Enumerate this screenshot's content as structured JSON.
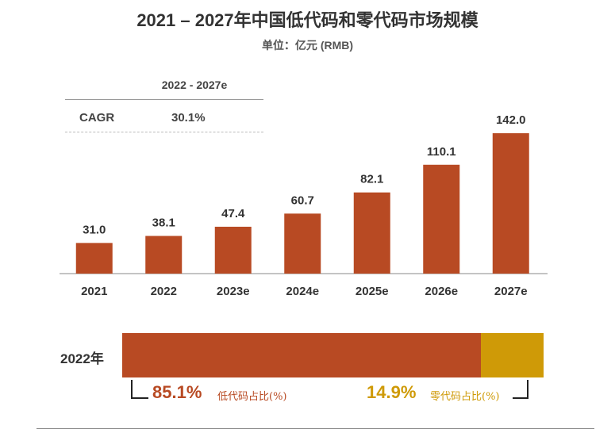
{
  "title": "2021 – 2027年中国低代码和零代码市场规模",
  "subtitle": "单位：亿元 (RMB)",
  "cagr": {
    "period": "2022 - 2027e",
    "label": "CAGR",
    "value": "30.1%"
  },
  "colors": {
    "bar": "#b84a23",
    "low_code": "#b84a23",
    "zero_code": "#cf9a07",
    "axis": "#888888"
  },
  "chart_data": [
    {
      "type": "bar",
      "title": "2021 – 2027年中国低代码和零代码市场规模",
      "unit": "亿元 (RMB)",
      "categories": [
        "2021",
        "2022",
        "2023e",
        "2024e",
        "2025e",
        "2026e",
        "2027e"
      ],
      "values": [
        31.0,
        38.1,
        47.4,
        60.7,
        82.1,
        110.1,
        142.0
      ],
      "value_labels": [
        "31.0",
        "38.1",
        "47.4",
        "60.7",
        "82.1",
        "110.1",
        "142.0"
      ],
      "ylim": [
        0,
        142.0
      ],
      "grid": false,
      "legend": "none"
    },
    {
      "type": "bar",
      "orientation": "horizontal-stacked",
      "category": "2022年",
      "series": [
        {
          "name": "低代码占比(%)",
          "value": 85.1,
          "label": "85.1%"
        },
        {
          "name": "零代码占比(%)",
          "value": 14.9,
          "label": "14.9%"
        }
      ],
      "xlim": [
        0,
        100
      ]
    }
  ]
}
